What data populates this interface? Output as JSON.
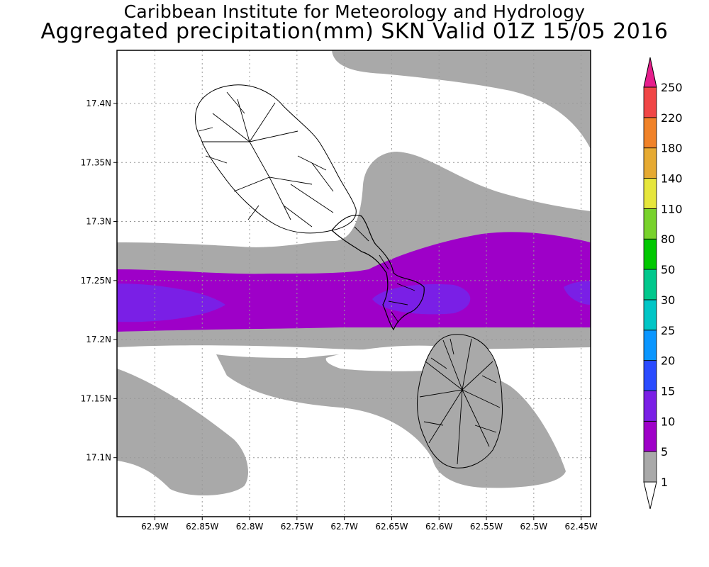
{
  "title": {
    "line1": "Caribbean Institute for Meteorology and Hydrology",
    "line2": "Aggregated precipitation(mm) SKN Valid 01Z 15/05 2016"
  },
  "map": {
    "lon_range": [
      -62.94,
      -62.44
    ],
    "lat_range": [
      17.05,
      17.445
    ],
    "lon_ticks": [
      {
        "value": -62.9,
        "label": "62.9W"
      },
      {
        "value": -62.85,
        "label": "62.85W"
      },
      {
        "value": -62.8,
        "label": "62.8W"
      },
      {
        "value": -62.75,
        "label": "62.75W"
      },
      {
        "value": -62.7,
        "label": "62.7W"
      },
      {
        "value": -62.65,
        "label": "62.65W"
      },
      {
        "value": -62.6,
        "label": "62.6W"
      },
      {
        "value": -62.55,
        "label": "62.55W"
      },
      {
        "value": -62.5,
        "label": "62.5W"
      },
      {
        "value": -62.45,
        "label": "62.45W"
      }
    ],
    "lat_ticks": [
      {
        "value": 17.1,
        "label": "17.1N"
      },
      {
        "value": 17.15,
        "label": "17.15N"
      },
      {
        "value": 17.2,
        "label": "17.2N"
      },
      {
        "value": 17.25,
        "label": "17.25N"
      },
      {
        "value": 17.3,
        "label": "17.3N"
      },
      {
        "value": 17.35,
        "label": "17.35N"
      },
      {
        "value": 17.4,
        "label": "17.4N"
      }
    ],
    "grid": true,
    "islands": [
      "st-kitts",
      "nevis"
    ]
  },
  "legend": {
    "levels": [
      {
        "label": "1",
        "color": "#ffffff"
      },
      {
        "label": "5",
        "color": "#a9a9a9"
      },
      {
        "label": "10",
        "color": "#9e00c8"
      },
      {
        "label": "15",
        "color": "#7a1fe6"
      },
      {
        "label": "20",
        "color": "#2a4bff"
      },
      {
        "label": "25",
        "color": "#0a96ff"
      },
      {
        "label": "30",
        "color": "#00c6c6"
      },
      {
        "label": "50",
        "color": "#00c88c"
      },
      {
        "label": "80",
        "color": "#00c800"
      },
      {
        "label": "110",
        "color": "#78d22c"
      },
      {
        "label": "140",
        "color": "#e6e63c"
      },
      {
        "label": "180",
        "color": "#e6aa32"
      },
      {
        "label": "220",
        "color": "#f08228"
      },
      {
        "label": "250",
        "color": "#f04646"
      }
    ],
    "top_color": "#e61e8c"
  }
}
